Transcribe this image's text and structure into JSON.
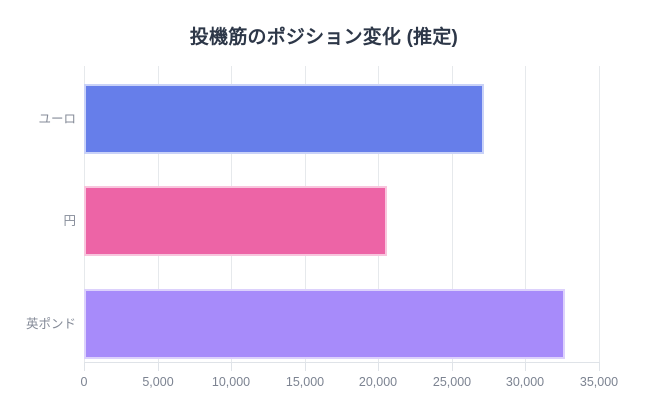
{
  "chart_data": {
    "type": "bar",
    "orientation": "horizontal",
    "title": "投機筋のポジション変化 (推定)",
    "categories": [
      "ユーロ",
      "円",
      "英ポンド"
    ],
    "values": [
      27200,
      20600,
      32700
    ],
    "xlabel": "",
    "ylabel": "",
    "xlim": [
      0,
      35000
    ],
    "x_ticks": [
      "0",
      "5,000",
      "10,000",
      "15,000",
      "20,000",
      "25,000",
      "30,000",
      "35,000"
    ],
    "grid": "vertical-on",
    "legend": "none",
    "bar_colors": [
      "#667EEA",
      "#ED64A6",
      "#A78BFA"
    ],
    "bar_border_colors": [
      "#C9D2F8",
      "#F8C5DD",
      "#DCD1FC"
    ]
  },
  "colors": {
    "background": "#FFFFFF",
    "title_text": "#2D3748",
    "category_label_text": "#858B98",
    "tick_label_text": "#7C8391",
    "gridline": "#E6E9EC",
    "axis_line": "#DFE3E8"
  }
}
